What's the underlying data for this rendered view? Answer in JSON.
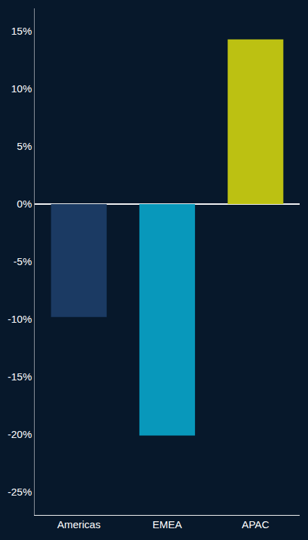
{
  "chart_data": {
    "type": "bar",
    "categories": [
      "Americas",
      "EMEA",
      "APAC"
    ],
    "values": [
      -9.8,
      -20.1,
      14.3
    ],
    "colors": [
      "#1b3a63",
      "#0898bb",
      "#bcc112"
    ],
    "ylim": [
      -27,
      17
    ],
    "yticks": [
      {
        "value": 15,
        "label": "15%"
      },
      {
        "value": 10,
        "label": "10%"
      },
      {
        "value": 5,
        "label": "5%"
      },
      {
        "value": 0,
        "label": "0%"
      },
      {
        "value": -5,
        "label": "-5%"
      },
      {
        "value": -10,
        "label": "-10%"
      },
      {
        "value": -15,
        "label": "-15%"
      },
      {
        "value": -20,
        "label": "-20%"
      },
      {
        "value": -25,
        "label": "-25%"
      }
    ],
    "grid": false
  }
}
